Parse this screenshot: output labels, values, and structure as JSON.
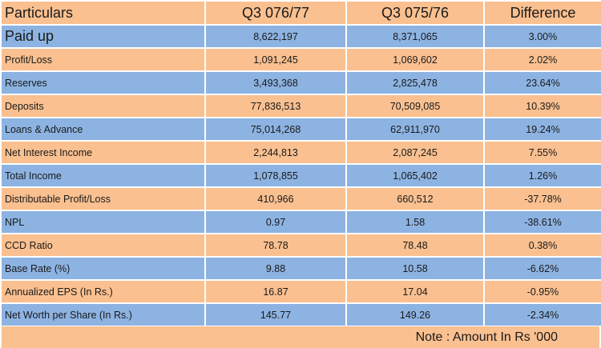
{
  "table": {
    "headers": [
      "Particulars",
      "Q3 076/77",
      "Q3 075/76",
      "Difference"
    ],
    "rows": [
      {
        "label": "Paid up",
        "q3_076_77": "8,622,197",
        "q3_075_76": "8,371,065",
        "difference": "3.00%"
      },
      {
        "label": "Profit/Loss",
        "q3_076_77": "1,091,245",
        "q3_075_76": "1,069,602",
        "difference": "2.02%"
      },
      {
        "label": "Reserves",
        "q3_076_77": "3,493,368",
        "q3_075_76": "2,825,478",
        "difference": "23.64%"
      },
      {
        "label": "Deposits",
        "q3_076_77": "77,836,513",
        "q3_075_76": "70,509,085",
        "difference": "10.39%"
      },
      {
        "label": "Loans & Advance",
        "q3_076_77": "75,014,268",
        "q3_075_76": "62,911,970",
        "difference": "19.24%"
      },
      {
        "label": "Net Interest Income",
        "q3_076_77": "2,244,813",
        "q3_075_76": "2,087,245",
        "difference": "7.55%"
      },
      {
        "label": "Total Income",
        "q3_076_77": "1,078,855",
        "q3_075_76": "1,065,402",
        "difference": "1.26%"
      },
      {
        "label": "Distributable Profit/Loss",
        "q3_076_77": "410,966",
        "q3_075_76": "660,512",
        "difference": "-37.78%"
      },
      {
        "label": "NPL",
        "q3_076_77": "0.97",
        "q3_075_76": "1.58",
        "difference": "-38.61%"
      },
      {
        "label": "CCD Ratio",
        "q3_076_77": "78.78",
        "q3_075_76": "78.48",
        "difference": "0.38%"
      },
      {
        "label": "Base Rate (%)",
        "q3_076_77": "9.88",
        "q3_075_76": "10.58",
        "difference": "-6.62%"
      },
      {
        "label": "Annualized EPS (In Rs.)",
        "q3_076_77": "16.87",
        "q3_075_76": "17.04",
        "difference": "-0.95%"
      },
      {
        "label": "Net Worth per Share (In Rs.)",
        "q3_076_77": "145.77",
        "q3_075_76": "149.26",
        "difference": "-2.34%"
      }
    ]
  },
  "note": "Note : Amount In Rs '000",
  "colors": {
    "header_bg": "#fac090",
    "orange_row": "#fac090",
    "blue_row": "#8db3e2"
  }
}
